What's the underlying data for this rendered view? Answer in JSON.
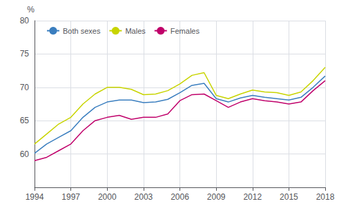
{
  "chart_data": {
    "type": "line",
    "ylabel": "%",
    "x": [
      1994,
      1995,
      1996,
      1997,
      1998,
      1999,
      2000,
      2001,
      2002,
      2003,
      2004,
      2005,
      2006,
      2007,
      2008,
      2009,
      2010,
      2011,
      2012,
      2013,
      2014,
      2015,
      2016,
      2017,
      2018
    ],
    "series": [
      {
        "name": "Both sexes",
        "color": "#3a7ebf",
        "values": [
          60.1,
          61.5,
          62.5,
          63.5,
          65.5,
          67.0,
          67.8,
          68.1,
          68.1,
          67.7,
          67.8,
          68.2,
          69.2,
          70.3,
          70.6,
          68.3,
          67.8,
          68.4,
          68.8,
          68.5,
          68.3,
          68.1,
          68.5,
          70.0,
          71.7
        ]
      },
      {
        "name": "Males",
        "color": "#c8d400",
        "values": [
          61.5,
          63.0,
          64.5,
          65.5,
          67.5,
          69.0,
          70.0,
          70.0,
          69.7,
          68.9,
          69.0,
          69.5,
          70.5,
          71.8,
          72.2,
          68.8,
          68.3,
          69.0,
          69.6,
          69.3,
          69.2,
          68.8,
          69.3,
          71.0,
          73.0
        ]
      },
      {
        "name": "Females",
        "color": "#c0006a",
        "values": [
          59.0,
          59.5,
          60.5,
          61.5,
          63.5,
          65.0,
          65.5,
          65.8,
          65.2,
          65.5,
          65.5,
          66.0,
          68.0,
          68.9,
          69.0,
          68.0,
          67.0,
          67.8,
          68.3,
          68.0,
          67.8,
          67.5,
          67.8,
          69.5,
          71.0
        ]
      }
    ],
    "xlim": [
      1994,
      2018
    ],
    "xticks": [
      1994,
      1997,
      2000,
      2003,
      2006,
      2009,
      2012,
      2015,
      2018
    ],
    "ylim": [
      55,
      80
    ],
    "yticks": [
      60,
      65,
      70,
      75,
      80
    ],
    "grid": true,
    "legend": "upper left"
  }
}
